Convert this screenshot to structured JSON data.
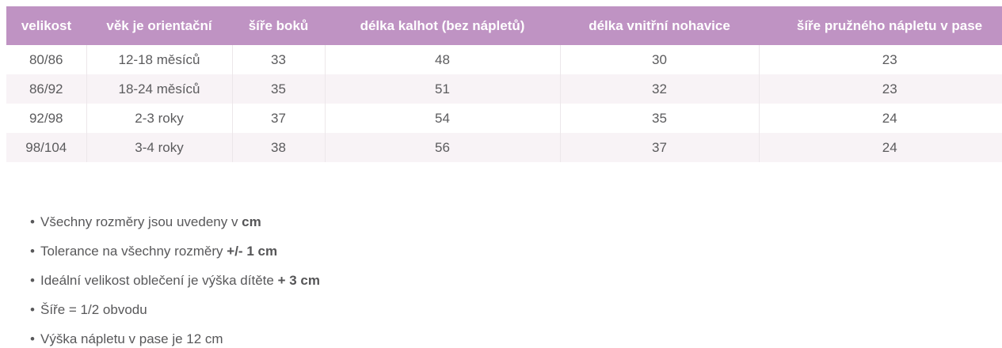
{
  "table": {
    "columns": [
      "velikost",
      "věk je orientační",
      "šíře boků",
      "délka kalhot (bez nápletů)",
      "délka vnitřní nohavice",
      "šíře pružného nápletu v pase"
    ],
    "rows": [
      [
        "80/86",
        "12-18 měsíců",
        "33",
        "48",
        "30",
        "23"
      ],
      [
        "86/92",
        "18-24 měsíců",
        "35",
        "51",
        "32",
        "23"
      ],
      [
        "92/98",
        "2-3 roky",
        "37",
        "54",
        "35",
        "24"
      ],
      [
        "98/104",
        "3-4 roky",
        "38",
        "56",
        "37",
        "24"
      ]
    ]
  },
  "notes": {
    "bullet": "•",
    "items": [
      {
        "text": "Všechny rozměry jsou uvedeny v ",
        "bold": "cm"
      },
      {
        "text": "Tolerance na všechny rozměry ",
        "bold": "+/- 1 cm"
      },
      {
        "text": "Ideální velikost oblečení je výška dítěte ",
        "bold": "+ 3 cm"
      },
      {
        "text": "Šíře = 1/2 obvodu",
        "bold": ""
      },
      {
        "text": "Výška nápletu v pase je 12 cm",
        "bold": ""
      }
    ]
  },
  "colors": {
    "header_bg": "#bf93c3",
    "header_text": "#ffffff",
    "row_alt_bg": "#f8f3f6",
    "cell_text": "#5b5b5d",
    "note_text": "#58585a",
    "cell_border": "#ece7ea"
  }
}
